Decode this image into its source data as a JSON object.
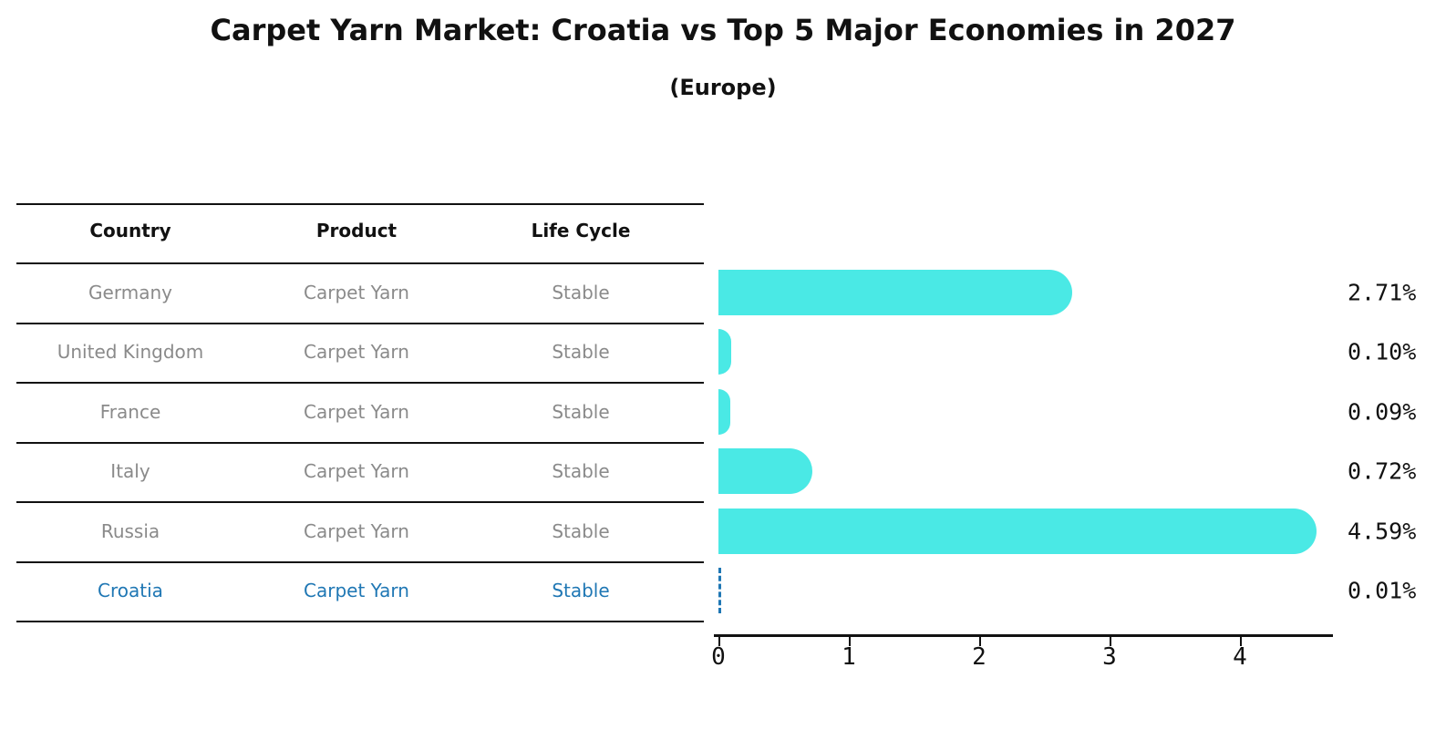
{
  "chart_data": {
    "type": "bar",
    "orientation": "horizontal",
    "title": "Carpet Yarn Market: Croatia vs Top 5 Major Economies in 2027",
    "subtitle": "(Europe)",
    "categories": [
      "Germany",
      "United Kingdom",
      "France",
      "Italy",
      "Russia",
      "Croatia"
    ],
    "values": [
      2.71,
      0.1,
      0.09,
      0.72,
      4.59,
      0.01
    ],
    "value_labels": [
      "2.71%",
      "0.10%",
      "0.09%",
      "0.72%",
      "4.59%",
      "0.01%"
    ],
    "xlim": [
      0,
      4.8
    ],
    "x_ticks": [
      "0",
      "1",
      "2",
      "3",
      "4"
    ],
    "grid": false,
    "legend": false
  },
  "table": {
    "headers": [
      "Country",
      "Product",
      "Life Cycle"
    ],
    "rows": [
      {
        "country": "Germany",
        "product": "Carpet Yarn",
        "life_cycle": "Stable",
        "highlighted": false
      },
      {
        "country": "United Kingdom",
        "product": "Carpet Yarn",
        "life_cycle": "Stable",
        "highlighted": false
      },
      {
        "country": "France",
        "product": "Carpet Yarn",
        "life_cycle": "Stable",
        "highlighted": false
      },
      {
        "country": "Italy",
        "product": "Carpet Yarn",
        "life_cycle": "Stable",
        "highlighted": false
      },
      {
        "country": "Russia",
        "product": "Carpet Yarn",
        "life_cycle": "Stable",
        "highlighted": false
      },
      {
        "country": "Croatia",
        "product": "Carpet Yarn",
        "life_cycle": "Stable",
        "highlighted": true
      }
    ]
  },
  "colors": {
    "bar": "#4AE9E5",
    "highlight_text": "#1F77B4",
    "highlight_bar_outline": "#1F77B4",
    "row_text": "#8A8A8A",
    "header_text": "#111111",
    "axis": "#111111"
  }
}
